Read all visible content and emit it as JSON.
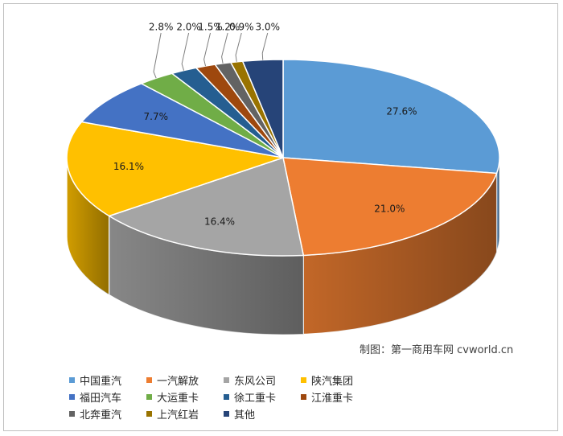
{
  "chart_data": {
    "type": "pie",
    "style": "3d",
    "title": "",
    "series": [
      {
        "name": "中国重汽",
        "value": 27.6,
        "label": "27.6%",
        "color": "#5b9bd5"
      },
      {
        "name": "一汽解放",
        "value": 21.0,
        "label": "21.0%",
        "color": "#ed7d31"
      },
      {
        "name": "东风公司",
        "value": 16.4,
        "label": "16.4%",
        "color": "#a5a5a5"
      },
      {
        "name": "陕汽集团",
        "value": 16.1,
        "label": "16.1%",
        "color": "#ffc000"
      },
      {
        "name": "福田汽车",
        "value": 7.7,
        "label": "7.7%",
        "color": "#4472c4"
      },
      {
        "name": "大运重卡",
        "value": 2.8,
        "label": "2.8%",
        "color": "#70ad47"
      },
      {
        "name": "徐工重卡",
        "value": 2.0,
        "label": "2.0%",
        "color": "#255e91"
      },
      {
        "name": "江淮重卡",
        "value": 1.5,
        "label": "1.5%",
        "color": "#9e480e"
      },
      {
        "name": "北奔重汽",
        "value": 1.2,
        "label": "1.2%",
        "color": "#636363"
      },
      {
        "name": "上汽红岩",
        "value": 0.9,
        "label": "0.9%",
        "color": "#997300"
      },
      {
        "name": "其他",
        "value": 3.0,
        "label": "3.0%",
        "color": "#264478"
      }
    ],
    "legend_position": "bottom-left"
  },
  "watermark": "制图：第一商用车网 cvworld.cn"
}
